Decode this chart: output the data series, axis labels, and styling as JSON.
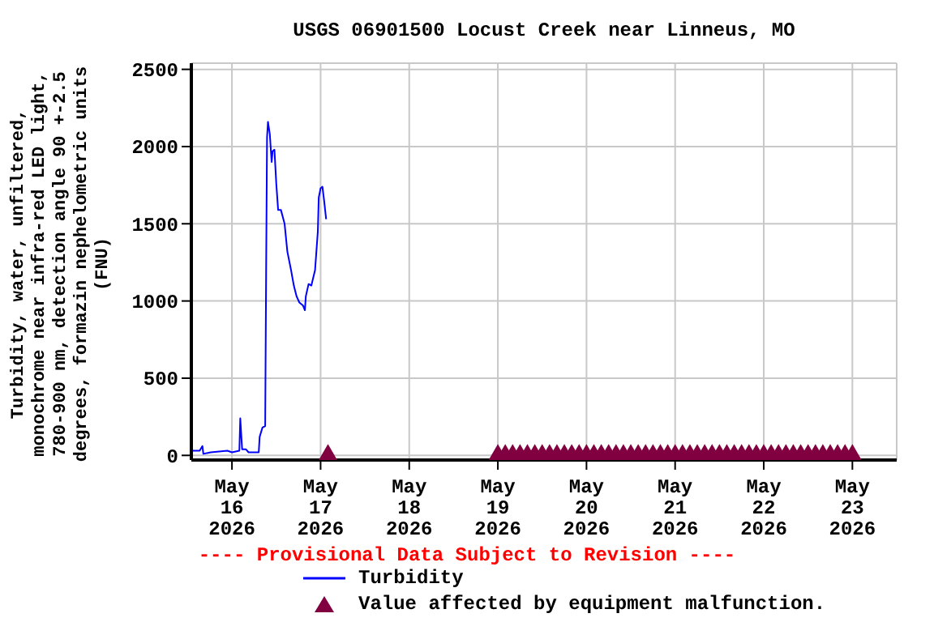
{
  "chart_data": {
    "type": "line",
    "title": "USGS 06901500 Locust Creek near Linneus, MO",
    "ylabel": "Turbidity, water, unfiltered, monochrome near infra-red LED light, 780-900 nm, detection angle 90 +-2.5 degrees, formazin nephelometric units (FNU)",
    "annotations": [
      "---- Provisional Data Subject to Revision ----"
    ],
    "xlim": [
      "2026-05-15T13:00",
      "2026-05-23T12:00"
    ],
    "xticks": [
      {
        "value": "2026-05-16",
        "label": "May\n16\n2026"
      },
      {
        "value": "2026-05-17",
        "label": "May\n17\n2026"
      },
      {
        "value": "2026-05-18",
        "label": "May\n18\n2026"
      },
      {
        "value": "2026-05-19",
        "label": "May\n19\n2026"
      },
      {
        "value": "2026-05-20",
        "label": "May\n20\n2026"
      },
      {
        "value": "2026-05-21",
        "label": "May\n21\n2026"
      },
      {
        "value": "2026-05-22",
        "label": "May\n22\n2026"
      },
      {
        "value": "2026-05-23",
        "label": "May\n23\n2026"
      }
    ],
    "ylim": [
      -30,
      2540
    ],
    "yticks": [
      0,
      500,
      1000,
      1500,
      2000,
      2500
    ],
    "grid": true,
    "legend": "bottom",
    "series": [
      {
        "name": "Turbidity",
        "color": "#0000ff",
        "marker": "none",
        "x": [
          "2026-05-15T13:00",
          "2026-05-15T14:00",
          "2026-05-15T15:15",
          "2026-05-15T16:00",
          "2026-05-15T16:15",
          "2026-05-15T18:15",
          "2026-05-15T22:45",
          "2026-05-16T00:00",
          "2026-05-16T02:00",
          "2026-05-16T02:15",
          "2026-05-16T02:45",
          "2026-05-16T03:45",
          "2026-05-16T04:30",
          "2026-05-16T07:15",
          "2026-05-16T07:30",
          "2026-05-16T08:15",
          "2026-05-16T09:00",
          "2026-05-16T09:15",
          "2026-05-16T09:30",
          "2026-05-16T09:45",
          "2026-05-16T10:15",
          "2026-05-16T10:45",
          "2026-05-16T11:00",
          "2026-05-16T11:30",
          "2026-05-16T12:00",
          "2026-05-16T12:30",
          "2026-05-16T13:15",
          "2026-05-16T14:15",
          "2026-05-16T15:00",
          "2026-05-16T16:00",
          "2026-05-16T16:45",
          "2026-05-16T17:30",
          "2026-05-16T18:15",
          "2026-05-16T19:15",
          "2026-05-16T19:45",
          "2026-05-16T20:00",
          "2026-05-16T20:45",
          "2026-05-16T21:30",
          "2026-05-16T22:30",
          "2026-05-16T23:15",
          "2026-05-16T23:30",
          "2026-05-17T00:00",
          "2026-05-17T00:30",
          "2026-05-17T01:00",
          "2026-05-17T01:30"
        ],
        "values": [
          30,
          30,
          30,
          60,
          10,
          20,
          30,
          20,
          30,
          240,
          40,
          40,
          20,
          20,
          120,
          180,
          190,
          1180,
          2060,
          2160,
          2080,
          1900,
          1970,
          1980,
          1760,
          1590,
          1590,
          1500,
          1320,
          1200,
          1100,
          1030,
          990,
          970,
          940,
          1030,
          1110,
          1100,
          1200,
          1450,
          1670,
          1730,
          1740,
          1640,
          1530
        ]
      },
      {
        "name": "Value affected by equipment malfunction.",
        "type": "scatter",
        "color": "#800040",
        "marker": "triangle",
        "x": [
          "2026-05-17T02:00",
          "2026-05-19T00:00",
          "2026-05-19T02:00",
          "2026-05-19T04:00",
          "2026-05-19T06:00",
          "2026-05-19T08:00",
          "2026-05-19T10:00",
          "2026-05-19T12:00",
          "2026-05-19T14:00",
          "2026-05-19T16:00",
          "2026-05-19T18:00",
          "2026-05-19T20:00",
          "2026-05-19T22:00",
          "2026-05-20T00:00",
          "2026-05-20T02:00",
          "2026-05-20T04:00",
          "2026-05-20T06:00",
          "2026-05-20T08:00",
          "2026-05-20T10:00",
          "2026-05-20T12:00",
          "2026-05-20T14:00",
          "2026-05-20T16:00",
          "2026-05-20T18:00",
          "2026-05-20T20:00",
          "2026-05-20T22:00",
          "2026-05-21T00:00",
          "2026-05-21T02:00",
          "2026-05-21T04:00",
          "2026-05-21T06:00",
          "2026-05-21T08:00",
          "2026-05-21T10:00",
          "2026-05-21T12:00",
          "2026-05-21T14:00",
          "2026-05-21T16:00",
          "2026-05-21T18:00",
          "2026-05-21T20:00",
          "2026-05-21T22:00",
          "2026-05-22T00:00",
          "2026-05-22T02:00",
          "2026-05-22T04:00",
          "2026-05-22T06:00",
          "2026-05-22T08:00",
          "2026-05-22T10:00",
          "2026-05-22T12:00",
          "2026-05-22T14:00",
          "2026-05-22T16:00",
          "2026-05-22T18:00",
          "2026-05-22T20:00",
          "2026-05-22T22:00",
          "2026-05-23T00:00"
        ],
        "values": [
          0,
          0,
          0,
          0,
          0,
          0,
          0,
          0,
          0,
          0,
          0,
          0,
          0,
          0,
          0,
          0,
          0,
          0,
          0,
          0,
          0,
          0,
          0,
          0,
          0,
          0,
          0,
          0,
          0,
          0,
          0,
          0,
          0,
          0,
          0,
          0,
          0,
          0,
          0,
          0,
          0,
          0,
          0,
          0,
          0,
          0,
          0,
          0,
          0,
          0
        ]
      }
    ]
  }
}
